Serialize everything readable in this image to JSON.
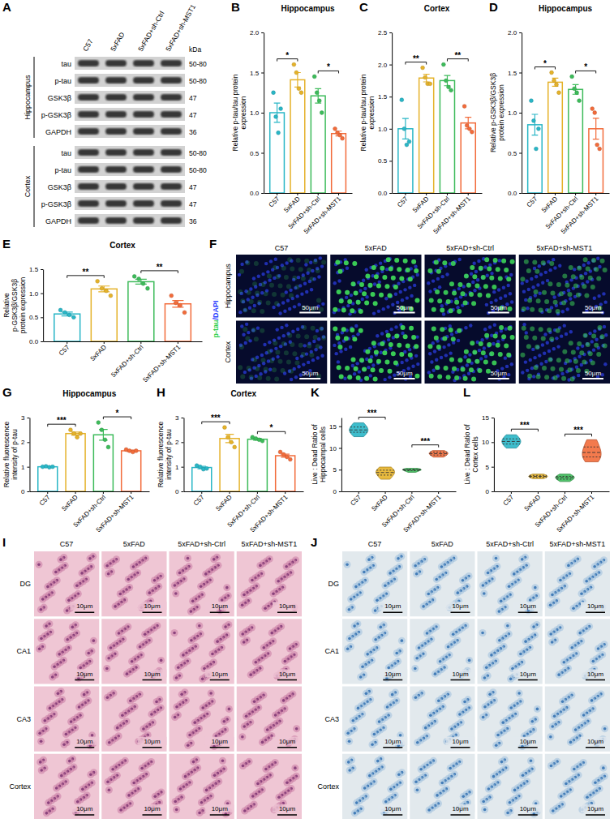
{
  "blot": {
    "panel": "A",
    "lanes": [
      "C57",
      "5xFAD",
      "5xFAD+sh-Ctrl",
      "5xFAD+sh-MST1"
    ],
    "unit": "kDa",
    "regions": [
      {
        "name": "Hippocampus",
        "rows": [
          {
            "protein": "tau",
            "size": "50-80"
          },
          {
            "protein": "p-tau",
            "size": "50-80"
          },
          {
            "protein": "GSK3β",
            "size": "47"
          },
          {
            "protein": "p-GSK3β",
            "size": "47"
          },
          {
            "protein": "GAPDH",
            "size": "36"
          }
        ]
      },
      {
        "name": "Cortex",
        "rows": [
          {
            "protein": "tau",
            "size": "50-80"
          },
          {
            "protein": "p-tau",
            "size": "50-80"
          },
          {
            "protein": "GSK3β",
            "size": "47"
          },
          {
            "protein": "p-GSK3β",
            "size": "47"
          },
          {
            "protein": "GAPDH",
            "size": "36"
          }
        ]
      }
    ]
  },
  "chart_data": [
    {
      "panel": "B",
      "type": "bar",
      "title": "Hippocampus",
      "y_label": "Relative p-tau/tau protein expression",
      "categories": [
        "C57",
        "5xFAD",
        "5xFAD+sh-Ctrl",
        "5xFAD+sh-MST1"
      ],
      "colors": [
        "#29b6c6",
        "#e5b22a",
        "#3dbb5a",
        "#f26b3a"
      ],
      "values": [
        1.0,
        1.41,
        1.21,
        0.74
      ],
      "error": [
        0.12,
        0.09,
        0.09,
        0.03
      ],
      "points": [
        [
          1.25,
          0.95,
          0.75,
          1.05
        ],
        [
          1.6,
          1.5,
          1.3,
          1.25
        ],
        [
          1.45,
          1.25,
          1.15,
          1.0
        ],
        [
          0.8,
          0.75,
          0.72,
          0.68
        ]
      ],
      "ylim": [
        0,
        2
      ],
      "yticks": [
        {
          "value": 0,
          "label": "0.0"
        },
        {
          "value": 0.5,
          "label": "0.5"
        },
        {
          "value": 1,
          "label": "1.0"
        },
        {
          "value": 1.5,
          "label": "1.5"
        },
        {
          "value": 2,
          "label": "2.0"
        }
      ],
      "annotations": [
        {
          "from": 0,
          "to": 1,
          "text": "*"
        },
        {
          "from": 2,
          "to": 3,
          "text": "*"
        }
      ]
    },
    {
      "panel": "C",
      "type": "bar",
      "title": "Cortex",
      "y_label": "Relative p-tau/tau protein expression",
      "categories": [
        "C57",
        "5xFAD",
        "5xFAD+sh-Ctrl",
        "5xFAD+sh-MST1"
      ],
      "colors": [
        "#29b6c6",
        "#e5b22a",
        "#3dbb5a",
        "#f26b3a"
      ],
      "values": [
        1.0,
        1.79,
        1.75,
        1.09
      ],
      "error": [
        0.16,
        0.06,
        0.08,
        0.09
      ],
      "points": [
        [
          1.45,
          1.0,
          0.75,
          0.8
        ],
        [
          1.95,
          1.8,
          1.7,
          1.7
        ],
        [
          2.0,
          1.75,
          1.65,
          1.6
        ],
        [
          1.35,
          1.05,
          1.0,
          0.95
        ]
      ],
      "ylim": [
        0,
        2.5
      ],
      "yticks": [
        {
          "value": 0,
          "label": "0.0"
        },
        {
          "value": 0.5,
          "label": "0.5"
        },
        {
          "value": 1,
          "label": "1.0"
        },
        {
          "value": 1.5,
          "label": "1.5"
        },
        {
          "value": 2,
          "label": "2.0"
        },
        {
          "value": 2.5,
          "label": "2.5"
        }
      ],
      "annotations": [
        {
          "from": 0,
          "to": 1,
          "text": "**"
        },
        {
          "from": 2,
          "to": 3,
          "text": "**"
        }
      ]
    },
    {
      "panel": "D",
      "type": "bar",
      "title": "Hippocampus",
      "y_label": "Relative p-GSK3β/GSK3β protein expression",
      "categories": [
        "C57",
        "5xFAD",
        "5xFAD+sh-Ctrl",
        "5xFAD+sh-MST1"
      ],
      "colors": [
        "#29b6c6",
        "#e5b22a",
        "#3dbb5a",
        "#f26b3a"
      ],
      "values": [
        0.85,
        1.38,
        1.29,
        0.8
      ],
      "error": [
        0.13,
        0.05,
        0.06,
        0.13
      ],
      "points": [
        [
          1.15,
          0.9,
          0.55,
          0.8
        ],
        [
          1.5,
          1.4,
          1.35,
          1.25
        ],
        [
          1.45,
          1.3,
          1.25,
          1.15
        ],
        [
          1.05,
          1.0,
          0.6,
          0.55
        ]
      ],
      "ylim": [
        0,
        2
      ],
      "yticks": [
        {
          "value": 0,
          "label": "0.0"
        },
        {
          "value": 0.5,
          "label": "0.5"
        },
        {
          "value": 1,
          "label": "1.0"
        },
        {
          "value": 1.5,
          "label": "1.5"
        },
        {
          "value": 2,
          "label": "2.0"
        }
      ],
      "annotations": [
        {
          "from": 0,
          "to": 1,
          "text": "*"
        },
        {
          "from": 2,
          "to": 3,
          "text": "*"
        }
      ]
    },
    {
      "panel": "E",
      "type": "bar",
      "title": "Cortex",
      "y_label": "Relative p-GSK3β/GSK3β protein expression",
      "categories": [
        "C57",
        "5xFAD",
        "5xFAD+sh-Ctrl",
        "5xFAD+sh-MST1"
      ],
      "colors": [
        "#29b6c6",
        "#e5b22a",
        "#3dbb5a",
        "#f26b3a"
      ],
      "values": [
        0.57,
        1.09,
        1.24,
        0.78
      ],
      "error": [
        0.04,
        0.06,
        0.05,
        0.07
      ],
      "points": [
        [
          0.65,
          0.6,
          0.55,
          0.5
        ],
        [
          1.25,
          1.1,
          1.05,
          0.95
        ],
        [
          1.35,
          1.3,
          1.2,
          1.1
        ],
        [
          0.95,
          0.8,
          0.75,
          0.6
        ]
      ],
      "ylim": [
        0,
        1.5
      ],
      "yticks": [
        {
          "value": 0,
          "label": "0.0"
        },
        {
          "value": 0.5,
          "label": "0.5"
        },
        {
          "value": 1,
          "label": "1.0"
        },
        {
          "value": 1.5,
          "label": "1.5"
        }
      ],
      "annotations": [
        {
          "from": 0,
          "to": 1,
          "text": "**"
        },
        {
          "from": 2,
          "to": 3,
          "text": "**"
        }
      ]
    },
    {
      "panel": "G",
      "type": "bar",
      "title": "Hippocampus",
      "y_label": "Relative fluorescence intensity of p-tau",
      "categories": [
        "C57",
        "5xFAD",
        "5xFAD+sh-Ctrl",
        "5xFAD+sh-MST1"
      ],
      "colors": [
        "#29b6c6",
        "#e5b22a",
        "#3dbb5a",
        "#f26b3a"
      ],
      "values": [
        1.0,
        2.35,
        2.3,
        1.65
      ],
      "error": [
        0.01,
        0.06,
        0.22,
        0.03
      ],
      "points": [
        [
          1.0,
          1.02,
          0.98,
          1.0
        ],
        [
          2.5,
          2.35,
          2.2,
          2.35
        ],
        [
          2.8,
          2.5,
          2.1,
          1.8
        ],
        [
          1.7,
          1.65,
          1.6,
          1.65
        ]
      ],
      "ylim": [
        0,
        3
      ],
      "yticks": [
        0,
        1,
        2,
        3
      ],
      "annotations": [
        {
          "from": 0,
          "to": 1,
          "text": "***"
        },
        {
          "from": 2,
          "to": 3,
          "text": "*"
        }
      ]
    },
    {
      "panel": "H",
      "type": "bar",
      "title": "Cortex",
      "y_label": "Relative fluorescence intensity of p-tau",
      "categories": [
        "C57",
        "5xFAD",
        "5xFAD+sh-Ctrl",
        "5xFAD+sh-MST1"
      ],
      "colors": [
        "#29b6c6",
        "#e5b22a",
        "#3dbb5a",
        "#f26b3a"
      ],
      "values": [
        0.97,
        2.15,
        2.12,
        1.45
      ],
      "error": [
        0.05,
        0.17,
        0.04,
        0.06
      ],
      "points": [
        [
          1.05,
          1.0,
          0.9,
          0.93
        ],
        [
          2.6,
          2.2,
          2.0,
          1.8
        ],
        [
          2.2,
          2.15,
          2.1,
          2.05
        ],
        [
          1.6,
          1.5,
          1.4,
          1.3
        ]
      ],
      "ylim": [
        0,
        3
      ],
      "yticks": [
        0,
        1,
        2,
        3
      ],
      "annotations": [
        {
          "from": 0,
          "to": 1,
          "text": "***"
        },
        {
          "from": 2,
          "to": 3,
          "text": "*"
        }
      ]
    },
    {
      "panel": "K",
      "type": "violin",
      "y_label": "Live : Dead Ratio of Hippocampal cells",
      "categories": [
        "C57",
        "5xFAD",
        "5xFAD+sh-Ctrl",
        "5xFAD+sh-MST1"
      ],
      "colors": [
        "#29b6c6",
        "#e5b22a",
        "#3dbb5a",
        "#f26b3a"
      ],
      "samples": [
        [
          12.6,
          13.5,
          14.0,
          14.3,
          15.0,
          15.8
        ],
        [
          2.8,
          3.6,
          4.2,
          4.5,
          5.0,
          5.6
        ],
        [
          4.4,
          4.7,
          4.9,
          5.0,
          5.1,
          5.3
        ],
        [
          7.9,
          8.3,
          8.6,
          8.8,
          9.1,
          9.4
        ]
      ],
      "ylim": [
        0,
        17
      ],
      "yticks": [
        0,
        5,
        10,
        15
      ],
      "annotations": [
        {
          "from": 0,
          "to": 1,
          "text": "***"
        },
        {
          "from": 2,
          "to": 3,
          "text": "***"
        }
      ]
    },
    {
      "panel": "L",
      "type": "violin",
      "y_label": "Live : Dead Ratio of Cortex cells",
      "categories": [
        "C57",
        "5xFAD",
        "5xFAD+sh-Ctrl",
        "5xFAD+sh-MST1"
      ],
      "colors": [
        "#29b6c6",
        "#e5b22a",
        "#3dbb5a",
        "#f26b3a"
      ],
      "samples": [
        [
          8.8,
          9.5,
          10.0,
          10.3,
          10.8,
          11.5
        ],
        [
          2.6,
          2.8,
          3.0,
          3.1,
          3.3,
          3.5
        ],
        [
          2.0,
          2.4,
          2.7,
          2.9,
          3.1,
          3.5
        ],
        [
          6.0,
          6.8,
          7.6,
          8.2,
          9.3,
          10.5
        ]
      ],
      "ylim": [
        0,
        15
      ],
      "yticks": [
        0,
        5,
        10,
        15
      ],
      "annotations": [
        {
          "from": 0,
          "to": 1,
          "text": "***"
        },
        {
          "from": 2,
          "to": 3,
          "text": "***"
        }
      ]
    }
  ],
  "fluorescence": {
    "panel": "F",
    "stain": [
      {
        "text": "p-tau",
        "color": "#2fcf4a"
      },
      {
        "text": "/DAPI",
        "color": "#2a3cff"
      }
    ],
    "columns": [
      "C57",
      "5xFAD",
      "5xFAD+sh-Ctrl",
      "5xFAD+sh-MST1"
    ],
    "rows": [
      "Hippocampus",
      "Cortex"
    ],
    "scale_bar": "50μm"
  },
  "histology": [
    {
      "panel": "I",
      "columns": [
        "C57",
        "5xFAD",
        "5xFAD+sh-Ctrl",
        "5xFAD+sh-MST1"
      ],
      "rows": [
        "DG",
        "CA1",
        "CA3",
        "Cortex"
      ],
      "scale_bar": "10μm"
    },
    {
      "panel": "J",
      "columns": [
        "C57",
        "5xFAD",
        "5xFAD+sh-Ctrl",
        "5xFAD+sh-MST1"
      ],
      "rows": [
        "DG",
        "CA1",
        "CA3",
        "Cortex"
      ],
      "scale_bar": "10μm"
    }
  ]
}
